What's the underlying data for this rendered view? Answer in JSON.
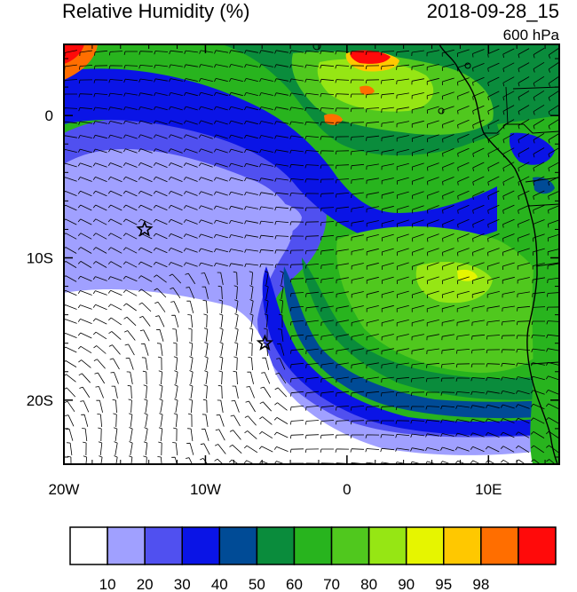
{
  "header": {
    "title": "Relative Humidity (%)",
    "datetime": "2018-09-28_15",
    "level": "600 hPa"
  },
  "axes": {
    "x_ticks": [
      {
        "label": "20W",
        "lon": -20
      },
      {
        "label": "10W",
        "lon": -10
      },
      {
        "label": "0",
        "lon": 0
      },
      {
        "label": "10E",
        "lon": 10
      }
    ],
    "y_ticks": [
      {
        "label": "0",
        "lat": 0
      },
      {
        "label": "10S",
        "lat": -10
      },
      {
        "label": "20S",
        "lat": -20
      }
    ],
    "lon_range": [
      -20,
      15
    ],
    "lat_range": [
      -24.5,
      5
    ]
  },
  "colorbar": {
    "colors": [
      "#ffffff",
      "#a0a0ff",
      "#5050f0",
      "#0a14e6",
      "#004b96",
      "#0a8c3c",
      "#28b41e",
      "#50c81e",
      "#96e614",
      "#e6f500",
      "#ffc800",
      "#ff6e00",
      "#ff0a0a"
    ],
    "labels": [
      "10",
      "20",
      "30",
      "40",
      "50",
      "60",
      "70",
      "80",
      "90",
      "95",
      "98"
    ]
  },
  "markers": [
    {
      "name": "star",
      "lon": -14.3,
      "lat": -8.0
    },
    {
      "name": "star",
      "lon": -5.8,
      "lat": -16.0
    }
  ]
}
